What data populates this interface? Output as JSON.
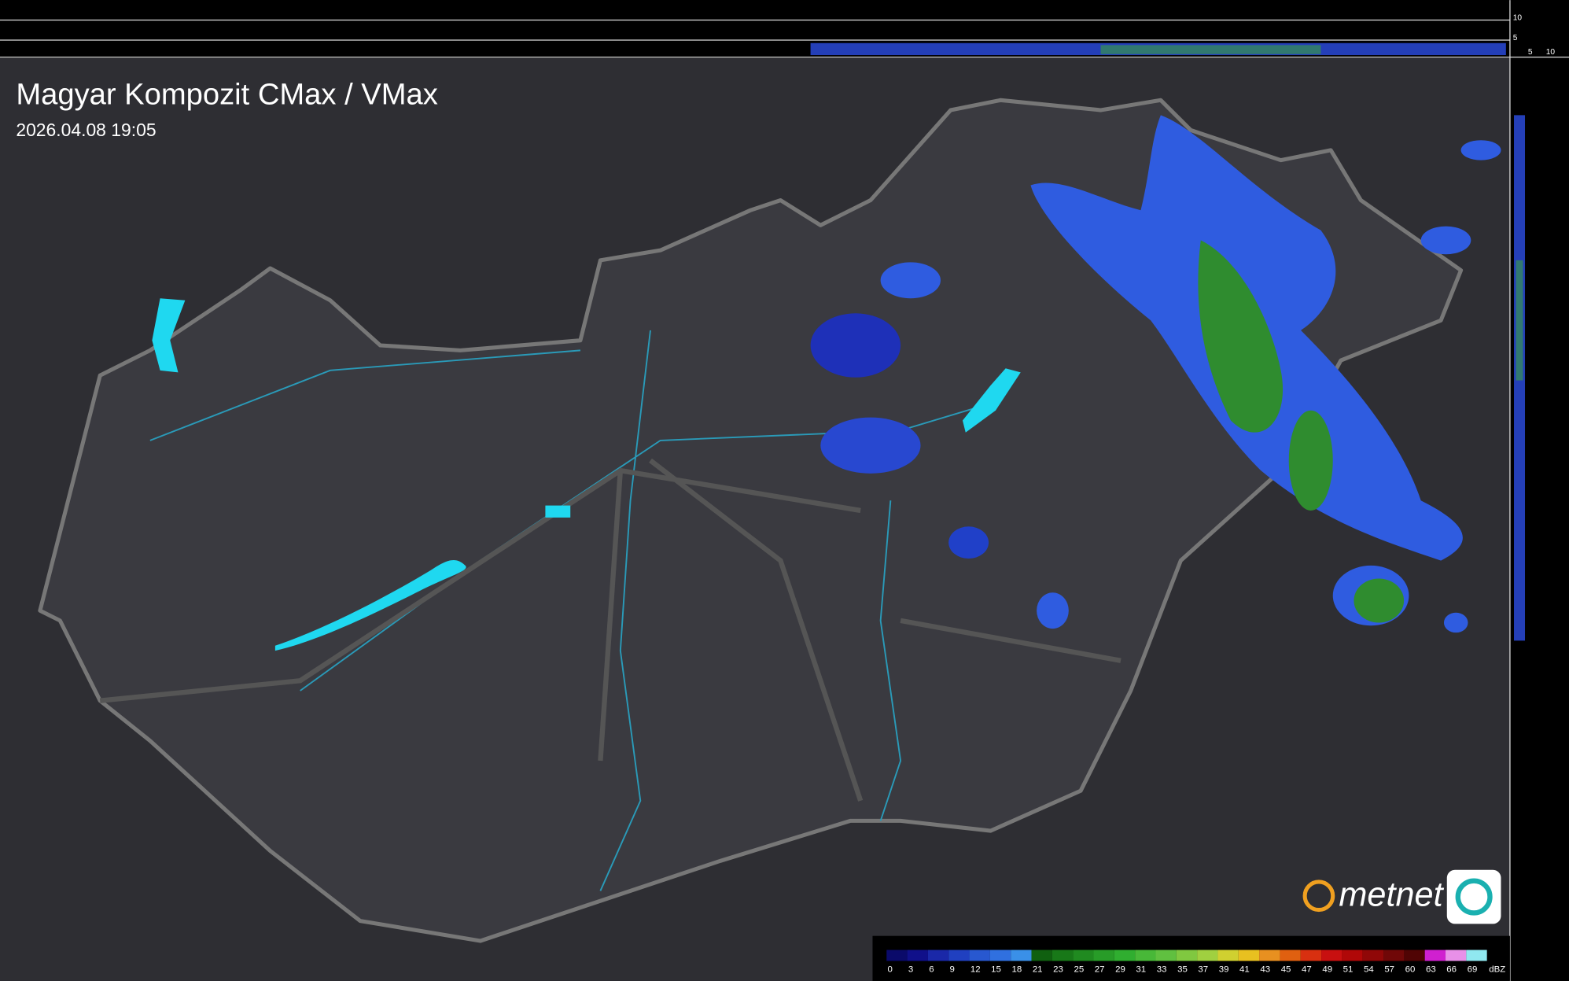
{
  "header": {
    "title": "Magyar Kompozit CMax / VMax",
    "timestamp": "2026.04.08 19:05"
  },
  "profile_top": {
    "ticks": [
      "10",
      "5"
    ]
  },
  "profile_side": {
    "ticks": [
      "5",
      "10"
    ]
  },
  "legend": {
    "unit": "dBZ",
    "levels": [
      0,
      3,
      6,
      9,
      12,
      15,
      18,
      21,
      23,
      25,
      27,
      29,
      31,
      33,
      35,
      37,
      39,
      41,
      43,
      45,
      47,
      49,
      51,
      54,
      57,
      60,
      63,
      66,
      69
    ],
    "colors": [
      "#0a0a6a",
      "#10108a",
      "#1a28a8",
      "#2040c0",
      "#2858d0",
      "#3070e0",
      "#3a90e8",
      "#106010",
      "#187818",
      "#208a20",
      "#289c28",
      "#30ae30",
      "#48b838",
      "#60c040",
      "#80c840",
      "#a0d040",
      "#d0d030",
      "#e8c020",
      "#e89020",
      "#e06010",
      "#d83010",
      "#c81010",
      "#b00808",
      "#900808",
      "#700808",
      "#500404",
      "#d020d0",
      "#e890e8",
      "#90e8f0"
    ]
  },
  "logo": {
    "text": "metnet"
  }
}
